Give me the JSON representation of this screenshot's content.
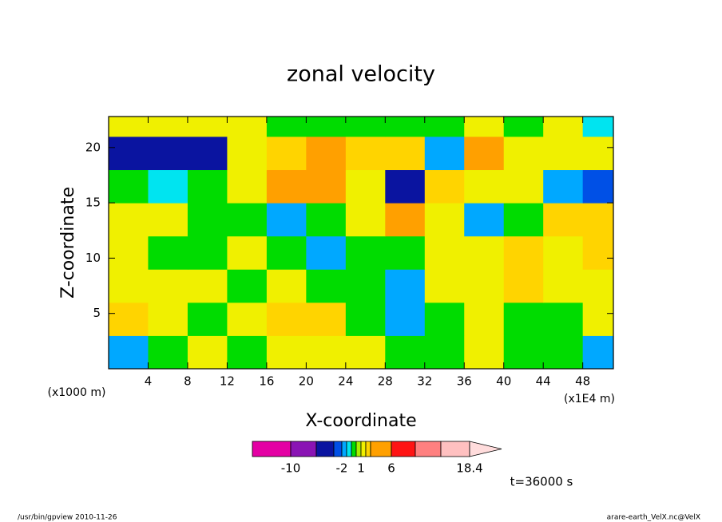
{
  "chart_data": {
    "type": "contour",
    "title": "zonal velocity",
    "x_label": "X-coordinate",
    "y_label": "Z-coordinate",
    "x_unit": "(x1E4 m)",
    "y_unit": "(x1000 m)",
    "time_label": "t=36000 s",
    "footer_left": "/usr/bin/gpview  2010-11-26",
    "footer_right": "arare-earth_VelX.nc@VelX",
    "xlim": [
      0,
      51.1
    ],
    "ylim": [
      0,
      22.8
    ],
    "xticks": [
      4,
      8,
      12,
      16,
      20,
      24,
      28,
      32,
      36,
      40,
      44,
      48
    ],
    "yticks": [
      5,
      10,
      15,
      20
    ],
    "x": [
      2,
      6,
      10,
      14,
      18,
      22,
      26,
      30,
      34,
      38,
      42,
      46,
      50
    ],
    "y": [
      1.5,
      4.5,
      7.5,
      10.5,
      13.5,
      16.5,
      19.5,
      22.5
    ],
    "z": [
      [
        -1.5,
        0.2,
        1.5,
        0.2,
        1.5,
        1.5,
        1.5,
        0.2,
        0.2,
        1.5,
        0.2,
        0.2,
        -1.5
      ],
      [
        2.5,
        1.5,
        0.3,
        1.5,
        2.5,
        2.5,
        0.3,
        -1.5,
        0.3,
        1.5,
        0.3,
        0.3,
        1.5
      ],
      [
        1.5,
        1.5,
        1.5,
        0.3,
        1.5,
        0.3,
        0.3,
        -1.5,
        1.5,
        1.5,
        2.5,
        1.5,
        1.5
      ],
      [
        1.5,
        0.3,
        0.3,
        1.5,
        0.3,
        -1.5,
        0.3,
        0.3,
        1.5,
        1.5,
        2.5,
        1.5,
        2.5
      ],
      [
        1.5,
        1.5,
        0.3,
        0.3,
        -1.5,
        0.3,
        1.5,
        4,
        1.5,
        -1.5,
        0.3,
        2.5,
        2.5
      ],
      [
        0.3,
        -0.5,
        0.3,
        1.5,
        4,
        4,
        1.5,
        -4,
        2.5,
        1.5,
        1.5,
        -1.5,
        -2.5
      ],
      [
        -4,
        -4,
        -4,
        1.5,
        2.5,
        4,
        2.5,
        2.5,
        -1.5,
        3.5,
        1.5,
        1.5,
        1.5
      ],
      [
        1.5,
        1.5,
        1.5,
        1.5,
        0.3,
        0.3,
        0.3,
        0.3,
        0.3,
        1.5,
        0.3,
        1.5,
        -0.5
      ]
    ],
    "levels": [
      -14,
      -10,
      -6,
      -3,
      -2,
      -1,
      0,
      0.5,
      1,
      2,
      3,
      6,
      10,
      14,
      18.4
    ],
    "colors": [
      "#e400a4",
      "#8a14b4",
      "#0a14a0",
      "#0050e6",
      "#00a8ff",
      "#00e4f0",
      "#00dc00",
      "#a8f000",
      "#f0f000",
      "#ffd400",
      "#ffa000",
      "#ff1414",
      "#ff8080",
      "#ffc0c0"
    ],
    "extend_color": "#ffdcdc",
    "colorbar_ticks": [
      -10,
      -2,
      1,
      6,
      18.4
    ]
  }
}
